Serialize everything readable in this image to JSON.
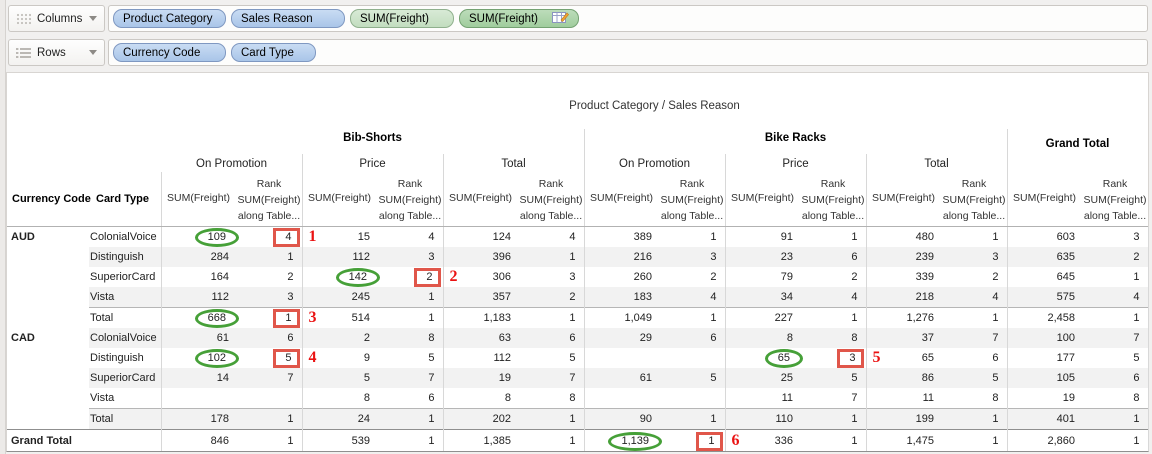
{
  "shelves": {
    "columns": {
      "label": "Columns",
      "pills": [
        {
          "label": "Product Category",
          "type": "dimension"
        },
        {
          "label": "Sales Reason",
          "type": "dimension"
        },
        {
          "label": "SUM(Freight)",
          "type": "measure"
        },
        {
          "label": "SUM(Freight)",
          "type": "measure_calc",
          "icon": "table-calc-icon"
        }
      ]
    },
    "rows": {
      "label": "Rows",
      "pills": [
        {
          "label": "Currency Code",
          "type": "dimension"
        },
        {
          "label": "Card Type",
          "type": "dimension"
        }
      ]
    }
  },
  "colors": {
    "dimension_pill": "#a9c5e8",
    "measure_pill": "#c2ddbf",
    "measure_calc_pill": "#a0cd9d",
    "oval_annotation": "#46a038",
    "box_annotation": "#e0564a",
    "annotation_number": "#ea1212"
  },
  "table": {
    "title": "Product Category / Sales Reason",
    "corner": {
      "col1": "Currency Code",
      "col2": "Card Type"
    },
    "column_groups": [
      {
        "label": "Bib-Shorts",
        "subcolumns": [
          "On Promotion",
          "Price",
          "Total"
        ]
      },
      {
        "label": "Bike Racks",
        "subcolumns": [
          "On Promotion",
          "Price",
          "Total"
        ]
      },
      {
        "label": "Grand Total",
        "subcolumns": []
      }
    ],
    "measure_header": {
      "value_label": "SUM(Freight)",
      "rank_lines": [
        "Rank",
        "SUM(Freight)",
        "along Table..."
      ]
    },
    "rows": [
      {
        "currency": "AUD",
        "span": 5,
        "card": "ColonialVoice",
        "cells": [
          "109",
          "4",
          "15",
          "4",
          "124",
          "4",
          "389",
          "1",
          "91",
          "1",
          "480",
          "1",
          "603",
          "3"
        ]
      },
      {
        "card": "Distinguish",
        "cells": [
          "284",
          "1",
          "112",
          "3",
          "396",
          "1",
          "216",
          "3",
          "23",
          "6",
          "239",
          "3",
          "635",
          "2"
        ]
      },
      {
        "card": "SuperiorCard",
        "cells": [
          "164",
          "2",
          "142",
          "2",
          "306",
          "3",
          "260",
          "2",
          "79",
          "2",
          "339",
          "2",
          "645",
          "1"
        ]
      },
      {
        "card": "Vista",
        "cells": [
          "112",
          "3",
          "245",
          "1",
          "357",
          "2",
          "183",
          "4",
          "34",
          "4",
          "218",
          "4",
          "575",
          "4"
        ]
      },
      {
        "card": "Total",
        "is_total": true,
        "cells": [
          "668",
          "1",
          "514",
          "1",
          "1,183",
          "1",
          "1,049",
          "1",
          "227",
          "1",
          "1,276",
          "1",
          "2,458",
          "1"
        ]
      },
      {
        "currency": "CAD",
        "span": 5,
        "card": "ColonialVoice",
        "cells": [
          "61",
          "6",
          "2",
          "8",
          "63",
          "6",
          "29",
          "6",
          "8",
          "8",
          "37",
          "7",
          "100",
          "7"
        ]
      },
      {
        "card": "Distinguish",
        "cells": [
          "102",
          "5",
          "9",
          "5",
          "112",
          "5",
          "",
          "",
          "65",
          "3",
          "65",
          "6",
          "177",
          "5"
        ]
      },
      {
        "card": "SuperiorCard",
        "cells": [
          "14",
          "7",
          "5",
          "7",
          "19",
          "7",
          "61",
          "5",
          "25",
          "5",
          "86",
          "5",
          "105",
          "6"
        ]
      },
      {
        "card": "Vista",
        "cells": [
          "",
          "",
          "8",
          "6",
          "8",
          "8",
          "",
          "",
          "11",
          "7",
          "11",
          "8",
          "19",
          "8"
        ]
      },
      {
        "card": "Total",
        "is_total": true,
        "cells": [
          "178",
          "1",
          "24",
          "1",
          "202",
          "1",
          "90",
          "1",
          "110",
          "1",
          "199",
          "1",
          "401",
          "1"
        ]
      },
      {
        "currency": "Grand Total",
        "grand": true,
        "cells": [
          "846",
          "1",
          "539",
          "1",
          "1,385",
          "1",
          "1,139",
          "1",
          "336",
          "1",
          "1,475",
          "1",
          "2,860",
          "1"
        ]
      }
    ],
    "annotations": [
      {
        "row": 0,
        "value_col": 0,
        "number": "1"
      },
      {
        "row": 2,
        "value_col": 2,
        "number": "2"
      },
      {
        "row": 4,
        "value_col": 0,
        "number": "3"
      },
      {
        "row": 6,
        "value_col": 0,
        "number": "4"
      },
      {
        "row": 6,
        "value_col": 8,
        "number": "5"
      },
      {
        "row": 10,
        "value_col": 6,
        "number": "6"
      }
    ]
  }
}
